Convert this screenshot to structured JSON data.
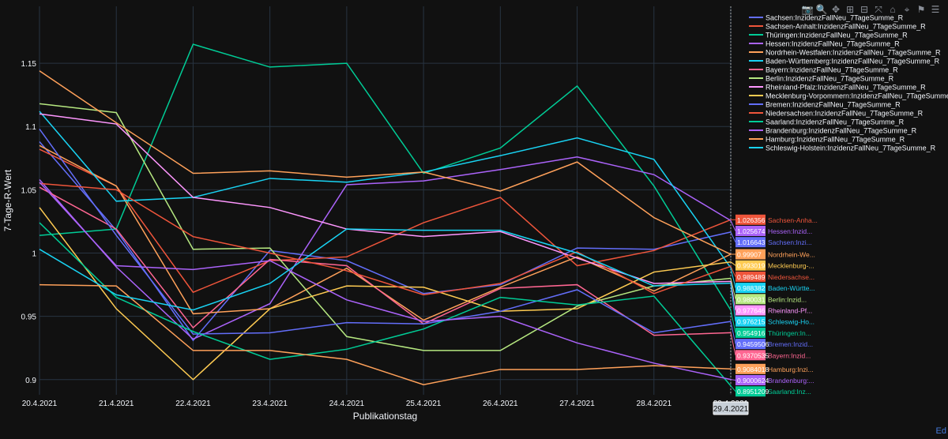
{
  "toolbar": {
    "icons": [
      "camera-icon",
      "zoom-icon",
      "pan-icon",
      "zoom-in-icon",
      "zoom-out-icon",
      "autoscale-icon",
      "reset-axes-icon",
      "spike-lines-icon",
      "hover-closest-icon",
      "hover-compare-icon"
    ],
    "glyphs": [
      "📷",
      "🔍",
      "✥",
      "⊞",
      "⊟",
      "⤧",
      "⌂",
      "⌖",
      "⚑",
      "☰"
    ]
  },
  "edge_link": "Ed",
  "chart_data": {
    "type": "line",
    "title": "",
    "xlabel": "Publikationstag",
    "ylabel": "7-Tage-R-Wert",
    "categories": [
      "20.4.2021",
      "21.4.2021",
      "22.4.2021",
      "23.4.2021",
      "24.4.2021",
      "25.4.2021",
      "26.4.2021",
      "27.4.2021",
      "28.4.2021",
      "29.4.2021"
    ],
    "ylim": [
      0.888,
      1.195
    ],
    "yticks": [
      0.9,
      0.95,
      1,
      1.05,
      1.1,
      1.15
    ],
    "ytick_labels": [
      "0.9",
      "0.95",
      "1",
      "1.05",
      "1.1",
      "1.15"
    ],
    "hover_x_label": "29.4.2021",
    "legend_position": "top-right",
    "series": [
      {
        "name": "Sachsen:InzidenzFallNeu_7TageSumme_R",
        "color": "#636efa",
        "values": [
          1.088,
          1.018,
          0.931,
          1.002,
          0.994,
          0.968,
          0.975,
          1.004,
          1.003,
          1.016643
        ],
        "label_value": "1.016643",
        "label_text": "Sachsen:Inzi..."
      },
      {
        "name": "Sachsen-Anhalt:InzidenzFallNeu_7TageSumme_R",
        "color": "#ef553b",
        "values": [
          1.082,
          1.053,
          0.969,
          0.994,
          0.997,
          1.024,
          1.044,
          0.99,
          1.002,
          1.026356
        ],
        "label_value": "1.026356",
        "label_text": "Sachsen-Anha..."
      },
      {
        "name": "Thüringen:InzidenzFallNeu_7TageSumme_R",
        "color": "#00cc96",
        "values": [
          1.014,
          1.019,
          1.165,
          1.147,
          1.15,
          1.063,
          1.083,
          1.132,
          1.053,
          0.954916
        ],
        "label_value": "0.954916",
        "label_text": "Thüringen:In..."
      },
      {
        "name": "Hessen:InzidenzFallNeu_7TageSumme_R",
        "color": "#ab63fa",
        "values": [
          1.058,
          0.989,
          0.932,
          0.96,
          1.054,
          1.057,
          1.066,
          1.076,
          1.062,
          1.025674
        ],
        "label_value": "1.025674",
        "label_text": "Hessen:Inzid..."
      },
      {
        "name": "Nordrhein-Westfalen:InzidenzFallNeu_7TageSumme_R",
        "color": "#ffa15a",
        "values": [
          1.085,
          1.053,
          0.952,
          0.956,
          0.988,
          0.947,
          0.973,
          0.997,
          0.97,
          0.99907
        ],
        "label_value": "0.99907",
        "label_text": "Nordrhein-We..."
      },
      {
        "name": "Baden-Württemberg:InzidenzFallNeu_7TageSumme_R",
        "color": "#19d3f3",
        "values": [
          1.112,
          1.041,
          1.044,
          1.059,
          1.056,
          1.064,
          1.077,
          1.091,
          1.074,
          0.988382
        ],
        "label_value": "0.988382",
        "label_text": "Baden-Württe..."
      },
      {
        "name": "Bayern:InzidenzFallNeu_7TageSumme_R",
        "color": "#ff6692",
        "values": [
          1.052,
          1.019,
          0.941,
          0.995,
          0.99,
          0.944,
          0.972,
          0.975,
          0.935,
          0.9370535
        ],
        "label_value": "0.9370535",
        "label_text": "Bayern:Inzid..."
      },
      {
        "name": "Berlin:InzidenzFallNeu_7TageSumme_R",
        "color": "#b6e880",
        "values": [
          1.118,
          1.111,
          1.003,
          1.004,
          0.934,
          0.923,
          0.923,
          0.958,
          0.974,
          0.980031
        ],
        "label_value": "0.980031",
        "label_text": "Berlin:Inzid..."
      },
      {
        "name": "Rheinland-Pfalz:InzidenzFallNeu_7TageSumme_R",
        "color": "#ff97ff",
        "values": [
          1.11,
          1.102,
          1.044,
          1.036,
          1.019,
          1.013,
          1.017,
          0.996,
          0.976,
          0.977646
        ],
        "label_value": "0.977646",
        "label_text": "Rheinland-Pf..."
      },
      {
        "name": "Mecklenburg-Vorpommern:InzidenzFallNeu_7TageSumme_R",
        "color": "#fecb52",
        "values": [
          1.036,
          0.956,
          0.9,
          0.956,
          0.974,
          0.973,
          0.954,
          0.956,
          0.985,
          0.993019
        ],
        "label_value": "0.993019",
        "label_text": "Mecklenburg-..."
      },
      {
        "name": "Bremen:InzidenzFallNeu_7TageSumme_R",
        "color": "#636efa",
        "values": [
          1.098,
          1.014,
          0.936,
          0.937,
          0.945,
          0.944,
          0.954,
          0.971,
          0.937,
          0.9459506
        ],
        "label_value": "0.9459506",
        "label_text": "Bremen:Inzid..."
      },
      {
        "name": "Niedersachsen:InzidenzFallNeu_7TageSumme_R",
        "color": "#ef553b",
        "values": [
          1.055,
          1.05,
          1.013,
          1.0,
          0.986,
          0.967,
          0.976,
          1.001,
          0.968,
          0.989489
        ],
        "label_value": "0.989489",
        "label_text": "Niedersachse..."
      },
      {
        "name": "Saarland:InzidenzFallNeu_7TageSumme_R",
        "color": "#00cc96",
        "values": [
          1.024,
          0.965,
          0.938,
          0.916,
          0.924,
          0.94,
          0.965,
          0.959,
          0.966,
          0.8951209
        ],
        "label_value": "0.8951209",
        "label_text": "Saarland:Inz..."
      },
      {
        "name": "Brandenburg:InzidenzFallNeu_7TageSumme_R",
        "color": "#ab63fa",
        "values": [
          1.056,
          0.99,
          0.987,
          0.994,
          0.963,
          0.946,
          0.95,
          0.929,
          0.913,
          0.9000624
        ],
        "label_value": "0.9000624",
        "label_text": "Brandenburg:..."
      },
      {
        "name": "Hamburg:InzidenzFallNeu_7TageSumme_R",
        "color": "#ffa15a",
        "values": [
          0.975,
          0.974,
          0.923,
          0.923,
          0.916,
          0.896,
          0.908,
          0.908,
          0.911,
          0.9084018
        ],
        "label_value": "0.9084018",
        "label_text": "Hamburg:Inzi..."
      },
      {
        "name": "Schleswig-Holstein:InzidenzFallNeu_7TageSumme_R",
        "color": "#19d3f3",
        "values": [
          1.003,
          0.967,
          0.955,
          0.976,
          1.019,
          1.018,
          1.018,
          1.0,
          0.974,
          0.976215
        ],
        "label_value": "0.976215",
        "label_text": "Schleswig-Ho..."
      },
      {
        "name": "Hamburg-Peak:InzidenzFallNeu_7TageSumme_R",
        "color": "#ffa15a",
        "values": [
          1.144,
          1.103,
          1.063,
          1.065,
          1.06,
          1.064,
          1.049,
          1.072,
          1.028,
          0.999
        ],
        "label_value": "",
        "label_text": "",
        "hidden_in_legend": true
      }
    ]
  }
}
